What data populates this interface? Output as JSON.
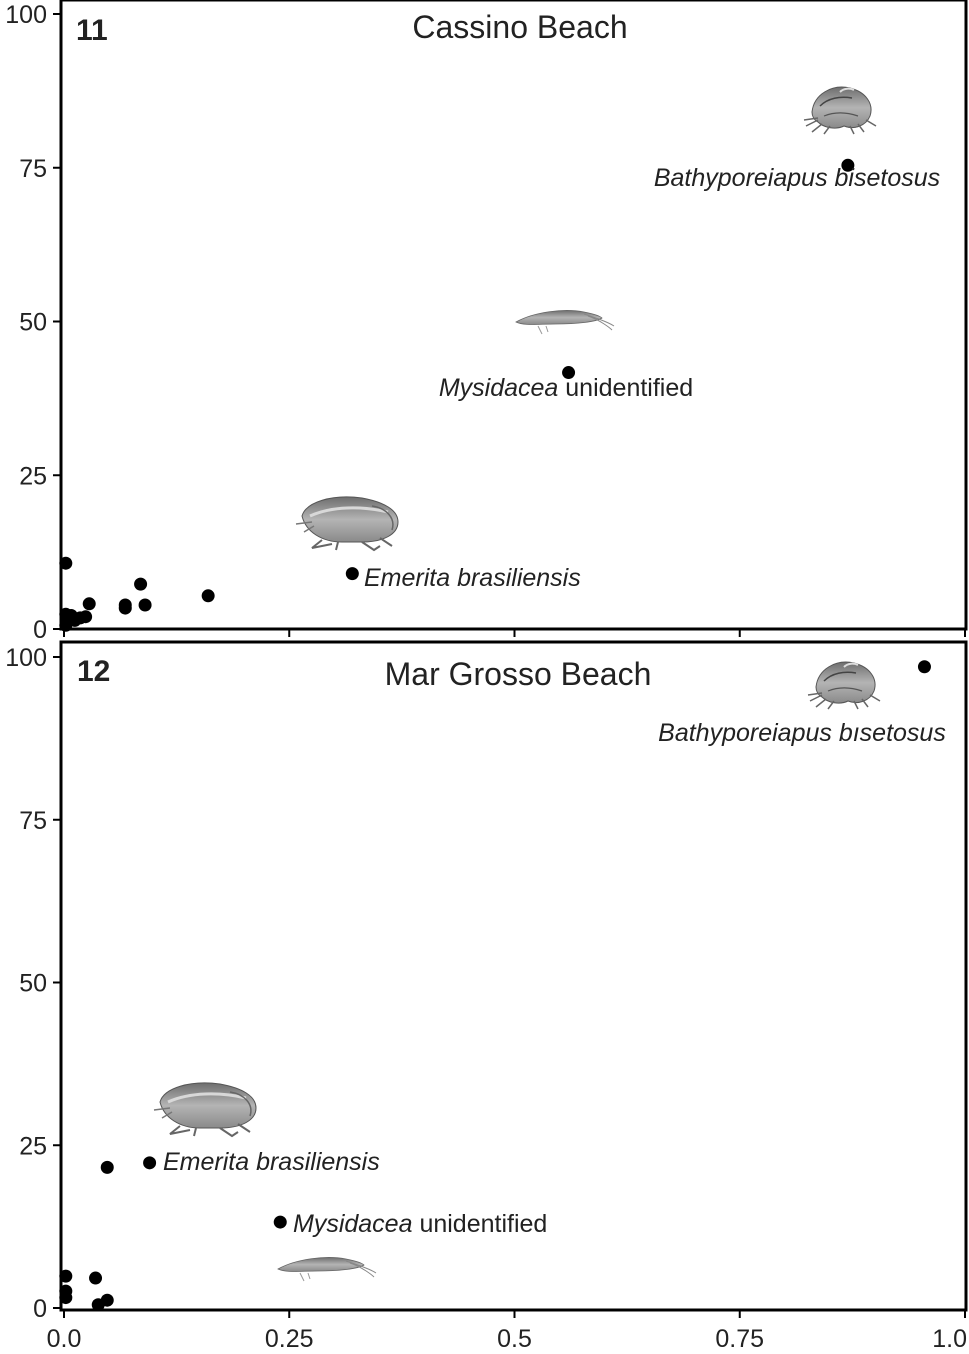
{
  "colors": {
    "axis": "#000000",
    "points": "#000000",
    "text": "#222222",
    "illustration": "#8a8a8a"
  },
  "x_axis": {
    "ticks": [
      0,
      0.25,
      0.5,
      0.75,
      1.0
    ],
    "tick_labels": [
      "0.0",
      "0.25",
      "0.5",
      "0.75",
      "1.0"
    ]
  },
  "chart_data": [
    {
      "type": "scatter",
      "panel_number": "11",
      "title": "Cassino Beach",
      "xlim": [
        0,
        1.0
      ],
      "ylim": [
        0,
        100
      ],
      "yticks": [
        0,
        25,
        50,
        75,
        100
      ],
      "ytick_labels": [
        "0",
        "25",
        "50",
        "75",
        "100"
      ],
      "points": [
        {
          "x": 0.87,
          "y": 75.4
        },
        {
          "x": 0.56,
          "y": 41.7
        },
        {
          "x": 0.32,
          "y": 9.0
        },
        {
          "x": 0.16,
          "y": 5.4
        },
        {
          "x": 0.085,
          "y": 7.3
        },
        {
          "x": 0.09,
          "y": 3.9
        },
        {
          "x": 0.068,
          "y": 3.4
        },
        {
          "x": 0.068,
          "y": 3.9
        },
        {
          "x": 0.028,
          "y": 4.1
        },
        {
          "x": 0.024,
          "y": 2.0
        },
        {
          "x": 0.018,
          "y": 1.8
        },
        {
          "x": 0.012,
          "y": 1.4
        },
        {
          "x": 0.008,
          "y": 2.2
        },
        {
          "x": 0.004,
          "y": 1.5
        },
        {
          "x": 0.002,
          "y": 10.7
        },
        {
          "x": 0.002,
          "y": 2.4
        },
        {
          "x": 0.002,
          "y": 0.6
        }
      ],
      "annotations": [
        {
          "italic": "Bathyporeiapus bisetosus",
          "normal": "",
          "icon": "amphipod-icon"
        },
        {
          "italic": "Mysidacea",
          "normal": " unidentified",
          "icon": "mysid-icon"
        },
        {
          "italic": "Emerita brasiliensis",
          "normal": "",
          "icon": "mole-crab-icon"
        }
      ]
    },
    {
      "type": "scatter",
      "panel_number": "12",
      "title": "Mar Grosso Beach",
      "xlim": [
        0,
        1.0
      ],
      "ylim": [
        0,
        100
      ],
      "yticks": [
        0,
        25,
        50,
        75,
        100
      ],
      "ytick_labels": [
        "0",
        "25",
        "50",
        "75",
        "100"
      ],
      "points": [
        {
          "x": 0.955,
          "y": 98.5
        },
        {
          "x": 0.095,
          "y": 22.3
        },
        {
          "x": 0.048,
          "y": 21.6
        },
        {
          "x": 0.24,
          "y": 13.2
        },
        {
          "x": 0.035,
          "y": 4.6
        },
        {
          "x": 0.002,
          "y": 4.9
        },
        {
          "x": 0.002,
          "y": 2.6
        },
        {
          "x": 0.002,
          "y": 1.6
        },
        {
          "x": 0.048,
          "y": 1.2
        },
        {
          "x": 0.038,
          "y": 0.5
        }
      ],
      "annotations": [
        {
          "italic": "Bathyporeiapus bısetosus",
          "normal": "",
          "icon": "amphipod-icon"
        },
        {
          "italic": "Emerita brasiliensis",
          "normal": "",
          "icon": "mole-crab-icon"
        },
        {
          "italic": "Mysidacea",
          "normal": " unidentified",
          "icon": "mysid-icon"
        }
      ]
    }
  ]
}
